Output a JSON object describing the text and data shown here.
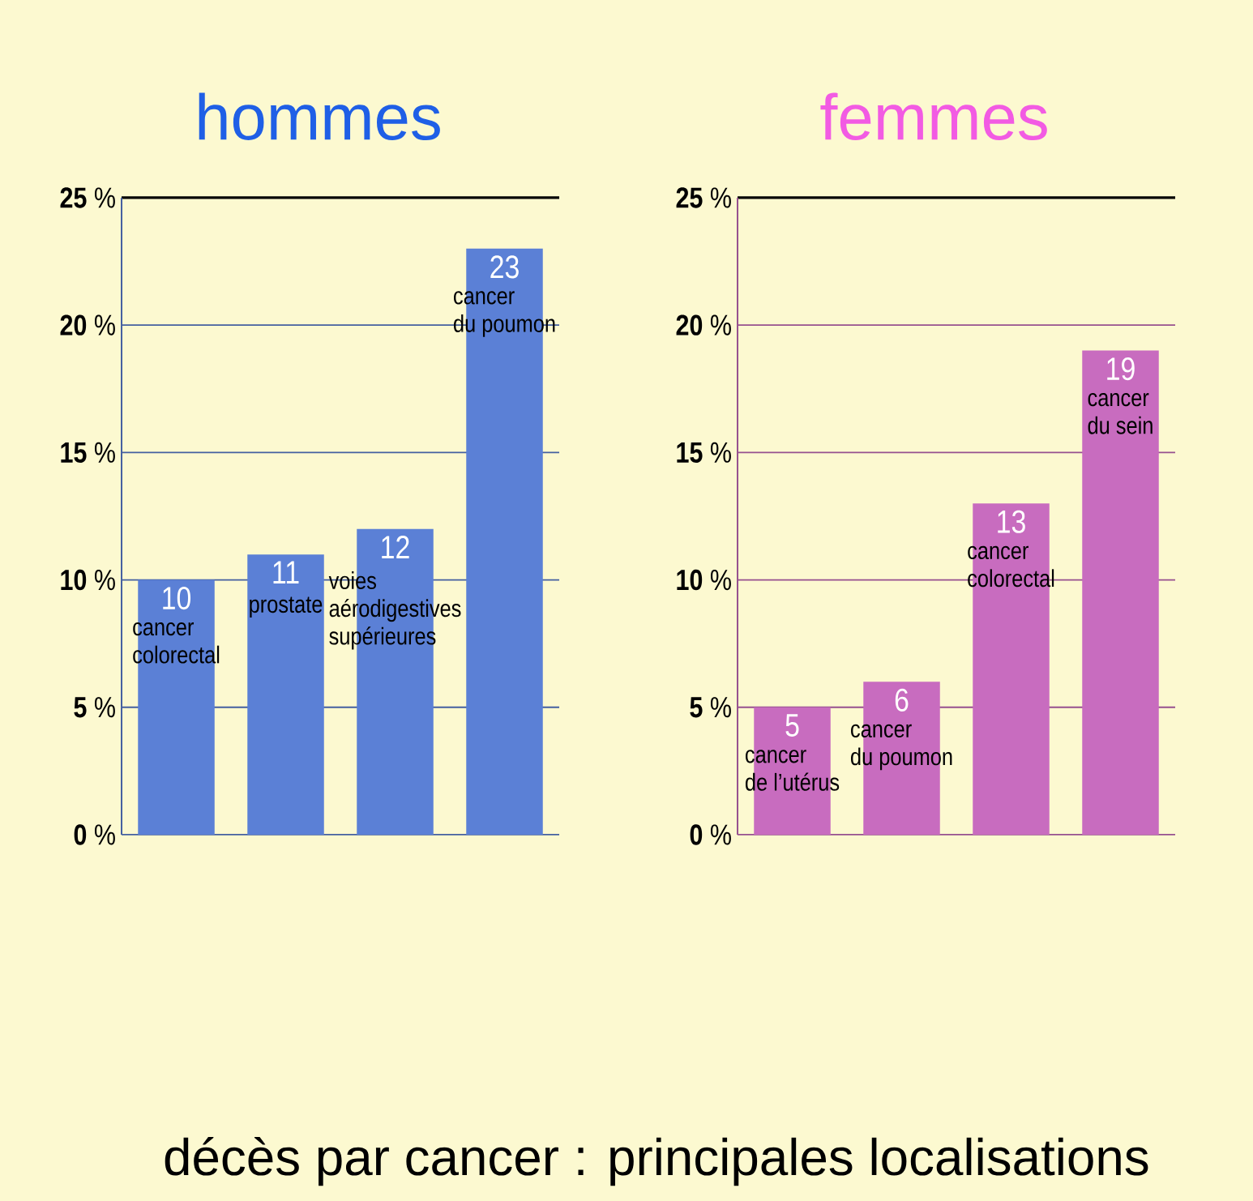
{
  "chart_data": [
    {
      "type": "bar",
      "title": "hommes",
      "categories": [
        "cancer colorectal",
        "prostate",
        "voies aérodigestives supérieures",
        "cancer du poumon"
      ],
      "values": [
        10,
        11,
        12,
        23
      ],
      "color": "#5b80d6",
      "ylim": [
        0,
        25
      ],
      "yticks": [
        {
          "value": 0,
          "label": "**0** %"
        },
        {
          "value": 5,
          "label": "**5** %"
        },
        {
          "value": 10,
          "label": "**10** %"
        },
        {
          "value": 15,
          "label": "**15** %"
        },
        {
          "value": 20,
          "label": "**20** %"
        },
        {
          "value": 25,
          "label": "**25** %"
        }
      ],
      "grid": "y",
      "data_labels": true,
      "annotations": [
        "décès par cancer : principales localisations"
      ]
    },
    {
      "type": "bar",
      "title": "femmes",
      "categories": [
        "cancer de l’utérus",
        "cancer du poumon",
        "cancer colorectal",
        "cancer du sein"
      ],
      "values": [
        5,
        6,
        13,
        19
      ],
      "color": "#c86cbf",
      "ylim": [
        0,
        25
      ],
      "yticks": [
        {
          "value": 0,
          "label": "**0** %"
        },
        {
          "value": 5,
          "label": "**5** %"
        },
        {
          "value": 10,
          "label": "**10** %"
        },
        {
          "value": 15,
          "label": "**15** %"
        },
        {
          "value": 20,
          "label": "**20** %"
        },
        {
          "value": 25,
          "label": "**25** %"
        }
      ],
      "grid": "y",
      "data_labels": true
    }
  ]
}
